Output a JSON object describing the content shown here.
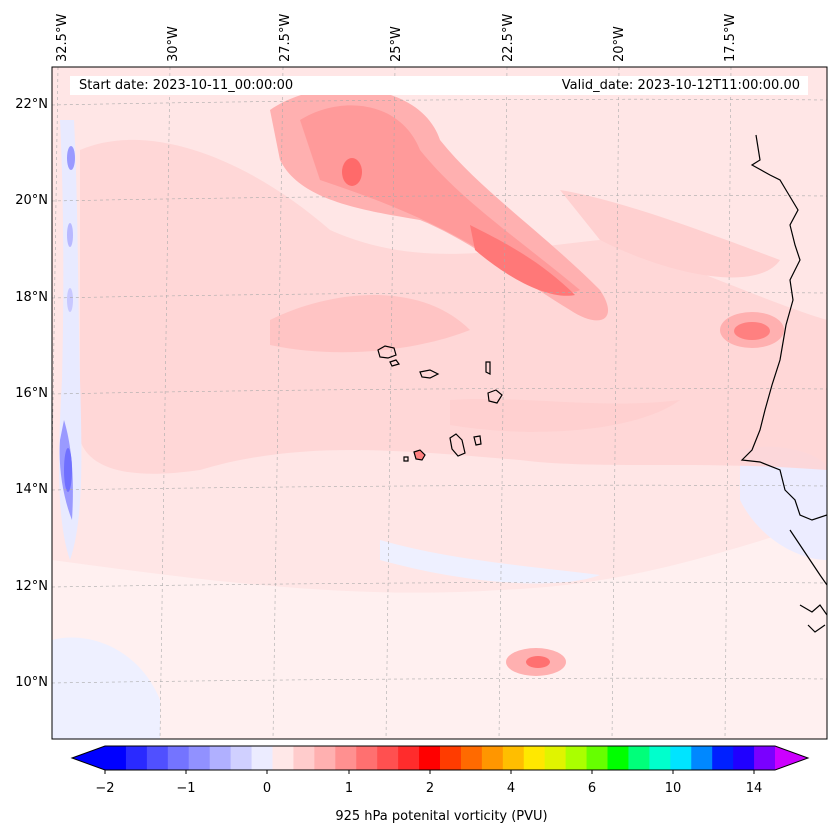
{
  "header": {
    "start_date": "Start date: 2023-10-11_00:00:00",
    "valid_date": "Valid_date: 2023-10-12T11:00:00.00"
  },
  "longitude_labels": [
    "32.5°W",
    "30°W",
    "27.5°W",
    "25°W",
    "22.5°W",
    "20°W",
    "17.5°W"
  ],
  "latitude_labels": [
    "22°N",
    "20°N",
    "18°N",
    "16°N",
    "14°N",
    "12°N",
    "10°N"
  ],
  "colorbar": {
    "label": "925 hPa potenital vorticity (PVU)",
    "tick_labels": [
      "−2",
      "−1",
      "0",
      "1",
      "2",
      "4",
      "6",
      "10",
      "14"
    ],
    "colors": [
      "#0000ff",
      "#2a2aff",
      "#5050ff",
      "#7474ff",
      "#9191ff",
      "#b0b0ff",
      "#d0d0ff",
      "#ececff",
      "#ffe8e8",
      "#ffcccc",
      "#ffb0b0",
      "#ff9090",
      "#ff7070",
      "#ff5050",
      "#ff2c2c",
      "#ff0000",
      "#ff3c00",
      "#ff6a00",
      "#ff9600",
      "#ffbe00",
      "#ffe800",
      "#e0f400",
      "#aaff00",
      "#66ff00",
      "#00ff00",
      "#00ff7a",
      "#00ffcc",
      "#00e4ff",
      "#0088ff",
      "#0020ff",
      "#2000ff",
      "#7a00ff"
    ],
    "extend_low": "#0000ff",
    "extend_high": "#cc00ff"
  },
  "map": {
    "background_color": "#ffe6e6",
    "coastline_color": "#000000"
  }
}
